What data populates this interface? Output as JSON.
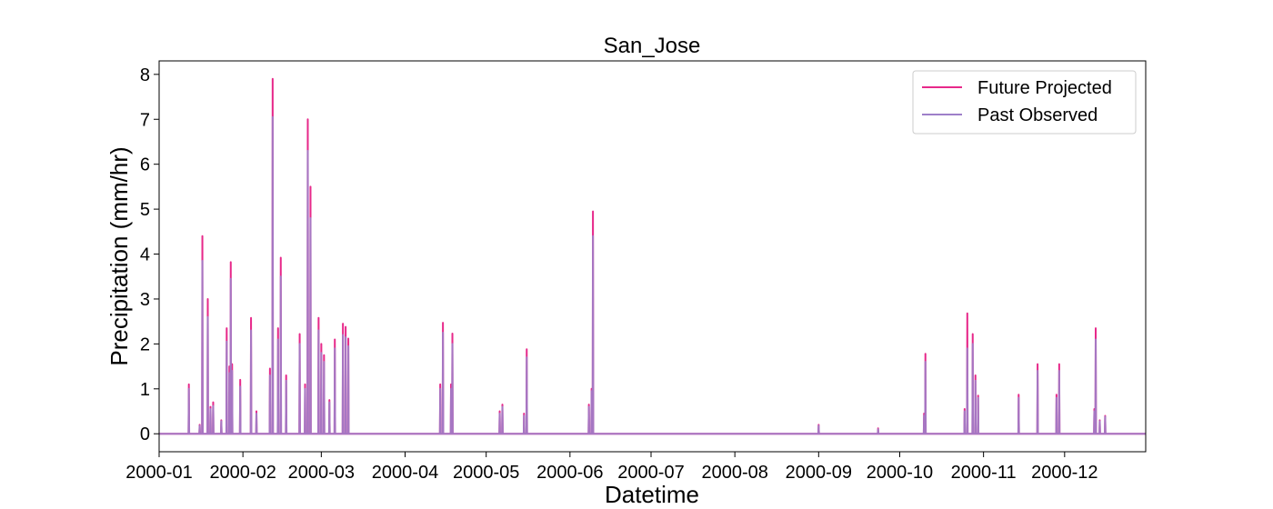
{
  "chart_data": {
    "type": "line",
    "title": "San_Jose",
    "xlabel": "Datetime",
    "ylabel": "Precipitation (mm/hr)",
    "xlim": [
      "2000-01-01",
      "2000-12-31"
    ],
    "ylim": [
      -0.4,
      8.3
    ],
    "x_ticks": [
      "2000-01",
      "2000-02",
      "2000-03",
      "2000-04",
      "2000-05",
      "2000-06",
      "2000-07",
      "2000-08",
      "2000-09",
      "2000-10",
      "2000-11",
      "2000-12"
    ],
    "y_ticks": [
      0,
      1,
      2,
      3,
      4,
      5,
      6,
      7,
      8
    ],
    "grid": false,
    "legend_position": "top-right",
    "series": [
      {
        "name": "Future Projected",
        "color": "#e7298a",
        "points": [
          [
            "2000-01-12",
            1.1
          ],
          [
            "2000-01-16",
            0.2
          ],
          [
            "2000-01-17",
            4.4
          ],
          [
            "2000-01-19",
            3.0
          ],
          [
            "2000-01-20",
            0.6
          ],
          [
            "2000-01-21",
            0.7
          ],
          [
            "2000-01-24",
            0.3
          ],
          [
            "2000-01-26",
            2.35
          ],
          [
            "2000-01-27",
            1.5
          ],
          [
            "2000-01-27T12",
            3.82
          ],
          [
            "2000-01-28",
            1.55
          ],
          [
            "2000-01-31",
            1.2
          ],
          [
            "2000-02-04",
            2.58
          ],
          [
            "2000-02-06",
            0.5
          ],
          [
            "2000-02-11",
            1.45
          ],
          [
            "2000-02-12",
            7.9
          ],
          [
            "2000-02-14",
            2.35
          ],
          [
            "2000-02-15",
            3.92
          ],
          [
            "2000-02-17",
            1.3
          ],
          [
            "2000-02-22",
            2.22
          ],
          [
            "2000-02-24",
            1.1
          ],
          [
            "2000-02-25",
            7.0
          ],
          [
            "2000-02-26",
            5.5
          ],
          [
            "2000-02-29",
            2.58
          ],
          [
            "2000-03-01",
            2.0
          ],
          [
            "2000-03-02",
            1.75
          ],
          [
            "2000-03-04",
            0.75
          ],
          [
            "2000-03-06",
            2.1
          ],
          [
            "2000-03-09",
            2.45
          ],
          [
            "2000-03-10",
            2.38
          ],
          [
            "2000-03-11",
            2.12
          ],
          [
            "2000-04-14",
            1.1
          ],
          [
            "2000-04-15",
            2.47
          ],
          [
            "2000-04-18",
            1.1
          ],
          [
            "2000-04-18T12",
            2.23
          ],
          [
            "2000-05-06",
            0.5
          ],
          [
            "2000-05-07",
            0.65
          ],
          [
            "2000-05-15",
            0.45
          ],
          [
            "2000-05-16",
            1.88
          ],
          [
            "2000-06-08",
            0.65
          ],
          [
            "2000-06-09",
            1.0
          ],
          [
            "2000-06-09T12",
            4.95
          ],
          [
            "2000-09-01",
            0.2
          ],
          [
            "2000-09-23",
            0.12
          ],
          [
            "2000-10-10",
            0.45
          ],
          [
            "2000-10-10T12",
            1.78
          ],
          [
            "2000-10-25",
            0.55
          ],
          [
            "2000-10-26",
            2.68
          ],
          [
            "2000-10-28",
            2.22
          ],
          [
            "2000-10-29",
            1.3
          ],
          [
            "2000-10-30",
            0.85
          ],
          [
            "2000-11-14",
            0.87
          ],
          [
            "2000-11-21",
            1.55
          ],
          [
            "2000-11-28",
            0.87
          ],
          [
            "2000-11-29",
            1.55
          ],
          [
            "2000-12-12",
            0.55
          ],
          [
            "2000-12-12T12",
            2.35
          ],
          [
            "2000-12-14",
            0.3
          ],
          [
            "2000-12-16",
            0.4
          ]
        ]
      },
      {
        "name": "Past Observed",
        "color": "#9e7fc9",
        "points": [
          [
            "2000-01-12",
            1.0
          ],
          [
            "2000-01-16",
            0.18
          ],
          [
            "2000-01-17",
            3.85
          ],
          [
            "2000-01-19",
            2.6
          ],
          [
            "2000-01-20",
            0.55
          ],
          [
            "2000-01-21",
            0.62
          ],
          [
            "2000-01-24",
            0.28
          ],
          [
            "2000-01-26",
            2.05
          ],
          [
            "2000-01-27",
            1.35
          ],
          [
            "2000-01-27T12",
            3.45
          ],
          [
            "2000-01-28",
            1.4
          ],
          [
            "2000-01-31",
            1.05
          ],
          [
            "2000-02-04",
            2.3
          ],
          [
            "2000-02-06",
            0.45
          ],
          [
            "2000-02-11",
            1.3
          ],
          [
            "2000-02-12",
            7.05
          ],
          [
            "2000-02-14",
            2.1
          ],
          [
            "2000-02-15",
            3.5
          ],
          [
            "2000-02-17",
            1.18
          ],
          [
            "2000-02-22",
            2.0
          ],
          [
            "2000-02-24",
            1.0
          ],
          [
            "2000-02-25",
            6.3
          ],
          [
            "2000-02-26",
            4.8
          ],
          [
            "2000-02-29",
            2.3
          ],
          [
            "2000-03-01",
            1.8
          ],
          [
            "2000-03-02",
            1.6
          ],
          [
            "2000-03-04",
            0.7
          ],
          [
            "2000-03-06",
            1.9
          ],
          [
            "2000-03-09",
            2.2
          ],
          [
            "2000-03-10",
            2.15
          ],
          [
            "2000-03-11",
            1.95
          ],
          [
            "2000-04-14",
            1.0
          ],
          [
            "2000-04-15",
            2.25
          ],
          [
            "2000-04-18",
            1.0
          ],
          [
            "2000-04-18T12",
            2.0
          ],
          [
            "2000-05-06",
            0.45
          ],
          [
            "2000-05-07",
            0.6
          ],
          [
            "2000-05-15",
            0.4
          ],
          [
            "2000-05-16",
            1.7
          ],
          [
            "2000-06-08",
            0.6
          ],
          [
            "2000-06-09",
            0.95
          ],
          [
            "2000-06-09T12",
            4.4
          ],
          [
            "2000-09-01",
            0.18
          ],
          [
            "2000-09-23",
            0.1
          ],
          [
            "2000-10-10",
            0.4
          ],
          [
            "2000-10-10T12",
            1.6
          ],
          [
            "2000-10-25",
            0.5
          ],
          [
            "2000-10-26",
            1.9
          ],
          [
            "2000-10-28",
            2.0
          ],
          [
            "2000-10-29",
            1.18
          ],
          [
            "2000-10-30",
            0.8
          ],
          [
            "2000-11-14",
            0.8
          ],
          [
            "2000-11-21",
            1.4
          ],
          [
            "2000-11-28",
            0.8
          ],
          [
            "2000-11-29",
            1.4
          ],
          [
            "2000-12-12",
            0.5
          ],
          [
            "2000-12-12T12",
            2.1
          ],
          [
            "2000-12-14",
            0.28
          ],
          [
            "2000-12-16",
            0.38
          ]
        ]
      }
    ]
  }
}
